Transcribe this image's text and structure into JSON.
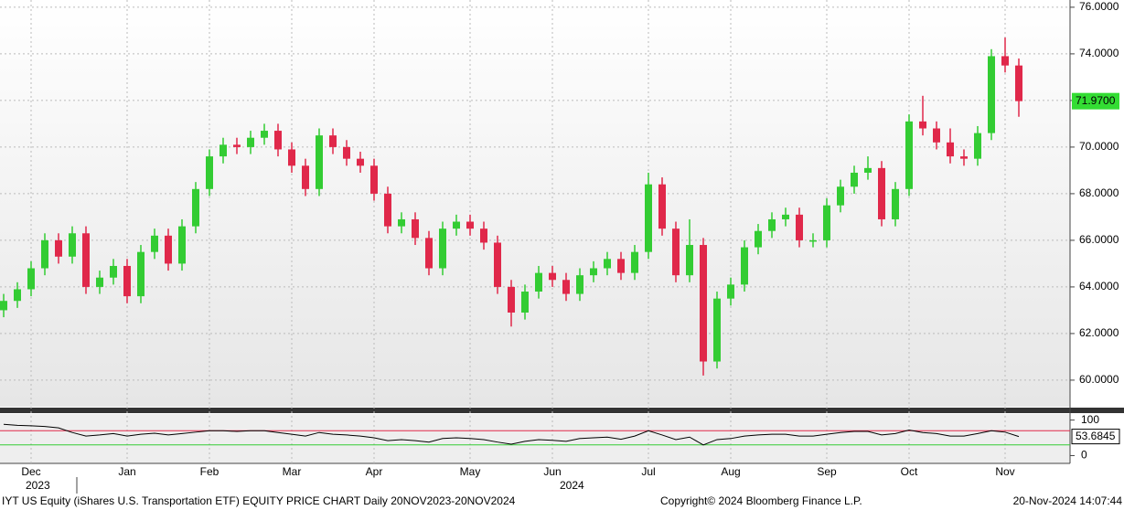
{
  "chart_data": {
    "type": "candlestick",
    "categories": [
      null,
      null,
      "Dec",
      null,
      null,
      null,
      null,
      null,
      null,
      "Jan",
      null,
      null,
      null,
      null,
      null,
      "Feb",
      null,
      null,
      null,
      null,
      null,
      "Mar",
      null,
      null,
      null,
      null,
      null,
      "Apr",
      null,
      null,
      null,
      null,
      null,
      null,
      "May",
      null,
      null,
      null,
      null,
      null,
      "Jun",
      null,
      null,
      null,
      null,
      null,
      null,
      "Jul",
      null,
      null,
      null,
      null,
      null,
      "Aug",
      null,
      null,
      null,
      null,
      null,
      null,
      "Sep",
      null,
      null,
      null,
      null,
      null,
      "Oct",
      null,
      null,
      null,
      null,
      null,
      null,
      "Nov",
      null
    ],
    "open": [
      63.0,
      63.4,
      63.9,
      64.8,
      66.0,
      65.3,
      66.3,
      64.0,
      64.4,
      64.9,
      63.6,
      65.5,
      66.2,
      65.0,
      66.6,
      68.2,
      69.6,
      70.1,
      70.0,
      70.4,
      70.7,
      69.9,
      69.2,
      68.2,
      70.5,
      70.0,
      69.5,
      69.2,
      68.0,
      66.6,
      66.9,
      66.1,
      64.8,
      66.5,
      66.8,
      66.5,
      65.9,
      64.0,
      62.9,
      63.8,
      64.6,
      64.3,
      63.7,
      64.5,
      64.8,
      65.2,
      64.6,
      65.5,
      68.4,
      66.5,
      64.5,
      65.8,
      60.8,
      63.5,
      64.1,
      65.7,
      66.4,
      66.9,
      67.1,
      66.0,
      66.0,
      67.5,
      68.3,
      68.9,
      69.1,
      66.9,
      68.2,
      71.1,
      70.8,
      70.2,
      69.6,
      69.5,
      70.6,
      73.9,
      73.5
    ],
    "high": [
      63.7,
      64.2,
      65.1,
      66.3,
      66.3,
      66.6,
      66.6,
      64.7,
      65.2,
      65.2,
      65.8,
      66.5,
      66.5,
      66.9,
      68.5,
      69.9,
      70.4,
      70.4,
      70.7,
      71.0,
      71.0,
      70.2,
      69.5,
      70.8,
      70.8,
      70.3,
      69.8,
      69.5,
      68.3,
      67.2,
      67.2,
      66.4,
      66.8,
      67.1,
      67.1,
      66.8,
      66.2,
      64.3,
      64.1,
      64.9,
      64.9,
      64.6,
      64.8,
      65.1,
      65.5,
      65.5,
      65.8,
      68.9,
      68.7,
      66.8,
      66.9,
      66.1,
      63.8,
      64.4,
      66.0,
      66.7,
      67.2,
      67.4,
      67.4,
      66.3,
      67.8,
      68.6,
      69.2,
      69.6,
      69.4,
      68.5,
      71.4,
      72.2,
      71.1,
      70.8,
      69.9,
      70.9,
      74.2,
      74.7,
      73.8
    ],
    "low": [
      62.7,
      63.1,
      63.6,
      64.5,
      65.0,
      65.0,
      63.7,
      63.7,
      64.1,
      63.3,
      63.3,
      65.2,
      64.7,
      64.7,
      66.3,
      67.9,
      69.3,
      69.7,
      69.7,
      70.1,
      69.6,
      68.9,
      67.9,
      67.9,
      69.7,
      69.2,
      68.9,
      67.7,
      66.3,
      66.3,
      65.8,
      64.5,
      64.5,
      66.2,
      66.2,
      65.6,
      63.7,
      62.3,
      62.6,
      63.5,
      64.0,
      63.4,
      63.4,
      64.2,
      64.5,
      64.3,
      64.3,
      65.2,
      66.2,
      64.2,
      64.2,
      60.2,
      60.5,
      63.2,
      63.8,
      65.4,
      66.1,
      66.6,
      65.7,
      65.7,
      65.7,
      67.2,
      68.0,
      68.6,
      66.6,
      66.6,
      67.9,
      70.5,
      69.9,
      69.3,
      69.2,
      69.2,
      70.3,
      73.2,
      71.3
    ],
    "close": [
      63.4,
      63.9,
      64.8,
      66.0,
      65.3,
      66.3,
      64.0,
      64.4,
      64.9,
      63.6,
      65.5,
      66.2,
      65.0,
      66.6,
      68.2,
      69.6,
      70.1,
      70.0,
      70.4,
      70.7,
      69.9,
      69.2,
      68.2,
      70.5,
      70.0,
      69.5,
      69.2,
      68.0,
      66.6,
      66.9,
      66.1,
      64.8,
      66.5,
      66.8,
      66.5,
      65.9,
      64.0,
      62.9,
      63.8,
      64.6,
      64.3,
      63.7,
      64.5,
      64.8,
      65.2,
      64.6,
      65.5,
      68.4,
      66.5,
      64.5,
      65.8,
      60.8,
      63.5,
      64.1,
      65.7,
      66.4,
      66.9,
      67.1,
      66.0,
      66.0,
      67.5,
      68.3,
      68.9,
      69.1,
      66.9,
      68.2,
      71.1,
      70.8,
      70.2,
      69.6,
      69.5,
      70.6,
      73.9,
      73.5,
      71.97
    ],
    "last_label": "71.9700",
    "up_color": "#33cc33",
    "down_color": "#e0284a",
    "label_color": "#33dd33",
    "ylim": [
      58.86,
      76.31
    ],
    "yticks": [
      {
        "value": 60,
        "label": "60.0000"
      },
      {
        "value": 62,
        "label": "62.0000"
      },
      {
        "value": 64,
        "label": "64.0000"
      },
      {
        "value": 66,
        "label": "66.0000"
      },
      {
        "value": 68,
        "label": "68.0000"
      },
      {
        "value": 70,
        "label": "70.0000"
      },
      {
        "value": 72,
        "label": "72.0000"
      },
      {
        "value": 74,
        "label": "74.0000"
      },
      {
        "value": 76,
        "label": "76.0000"
      }
    ],
    "grid": true,
    "rsi": {
      "type": "line",
      "color": "#000000",
      "values": [
        88,
        85,
        84,
        82,
        78,
        65,
        55,
        58,
        62,
        55,
        60,
        63,
        58,
        62,
        66,
        70,
        70,
        68,
        70,
        70,
        65,
        60,
        55,
        65,
        60,
        58,
        55,
        50,
        42,
        45,
        42,
        38,
        48,
        50,
        48,
        45,
        38,
        32,
        40,
        45,
        43,
        40,
        48,
        50,
        52,
        46,
        55,
        70,
        58,
        45,
        52,
        30,
        45,
        48,
        55,
        58,
        60,
        60,
        55,
        55,
        60,
        65,
        68,
        68,
        58,
        62,
        72,
        65,
        62,
        55,
        55,
        62,
        70,
        66,
        53.6845
      ],
      "ylim": [
        -22,
        117
      ],
      "yticks": [
        0,
        100
      ],
      "upper": 70,
      "upper_color": "#e0284a",
      "lower": 30,
      "lower_color": "#33cc33"
    },
    "years": [
      "2023",
      "2024"
    ],
    "footer": {
      "left": "IYT US Equity (iShares U.S. Transportation ETF) EQUITY PRICE CHART  Daily 20NOV2023-20NOV2024",
      "center": "Copyright© 2024 Bloomberg Finance L.P.",
      "right": "20-Nov-2024 14:07:44"
    }
  }
}
